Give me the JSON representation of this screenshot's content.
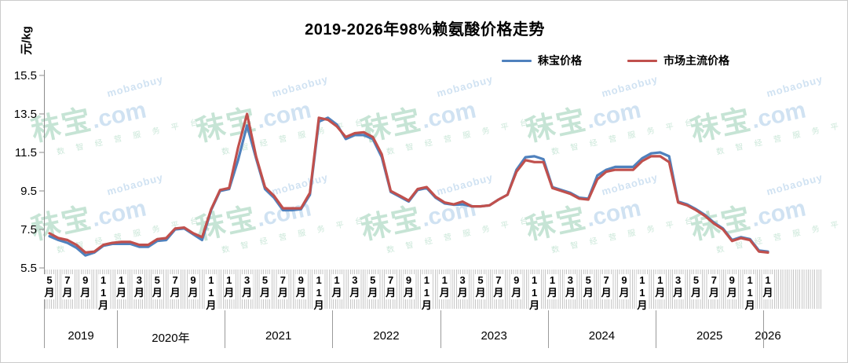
{
  "watermark": {
    "brand": "秣宝",
    "domain": ".com",
    "en": "mobaobuy",
    "slogan": "数 智 经 营 服 务 平 台"
  },
  "chart_data": {
    "type": "line",
    "title": "2019-2026年98%赖氨酸价格走势",
    "ylabel": "元/kg",
    "xlabel": "",
    "ylim": [
      5.5,
      15.5
    ],
    "grid": false,
    "legend_position": "top",
    "y_ticks": [
      "5.5",
      "7.5",
      "9.5",
      "11.5",
      "13.5",
      "15.5"
    ],
    "x_tick_every": 2,
    "x_tick_labels": [
      "5月",
      "7月",
      "9月",
      "11月",
      "1月",
      "3月",
      "5月",
      "7月",
      "9月",
      "11月",
      "1月",
      "3月",
      "5月",
      "7月",
      "9月",
      "11月",
      "1月",
      "3月",
      "5月",
      "7月",
      "9月",
      "11月",
      "1月",
      "3月",
      "5月",
      "7月",
      "9月",
      "11月",
      "1月",
      "3月",
      "5月",
      "7月",
      "9月",
      "11月",
      "1月",
      "3月",
      "5月",
      "7月",
      "9月",
      "11月",
      "1月"
    ],
    "years": [
      {
        "label": "2019",
        "from": 0,
        "to": 7
      },
      {
        "label": "2020年",
        "from": 8,
        "to": 19
      },
      {
        "label": "2021",
        "from": 20,
        "to": 31
      },
      {
        "label": "2022",
        "from": 32,
        "to": 43
      },
      {
        "label": "2023",
        "from": 44,
        "to": 55
      },
      {
        "label": "2024",
        "from": 56,
        "to": 67
      },
      {
        "label": "2025",
        "from": 68,
        "to": 79
      },
      {
        "label": "2026",
        "from": 80,
        "to": 80
      }
    ],
    "categories": [
      "2019-05",
      "2019-06",
      "2019-07",
      "2019-08",
      "2019-09",
      "2019-10",
      "2019-11",
      "2019-12",
      "2020-01",
      "2020-02",
      "2020-03",
      "2020-04",
      "2020-05",
      "2020-06",
      "2020-07",
      "2020-08",
      "2020-09",
      "2020-10",
      "2020-11",
      "2020-12",
      "2021-01",
      "2021-02",
      "2021-03",
      "2021-04",
      "2021-05",
      "2021-06",
      "2021-07",
      "2021-08",
      "2021-09",
      "2021-10",
      "2021-11",
      "2021-12",
      "2022-01",
      "2022-02",
      "2022-03",
      "2022-04",
      "2022-05",
      "2022-06",
      "2022-07",
      "2022-08",
      "2022-09",
      "2022-10",
      "2022-11",
      "2022-12",
      "2023-01",
      "2023-02",
      "2023-03",
      "2023-04",
      "2023-05",
      "2023-06",
      "2023-07",
      "2023-08",
      "2023-09",
      "2023-10",
      "2023-11",
      "2023-12",
      "2024-01",
      "2024-02",
      "2024-03",
      "2024-04",
      "2024-05",
      "2024-06",
      "2024-07",
      "2024-08",
      "2024-09",
      "2024-10",
      "2024-11",
      "2024-12",
      "2025-01",
      "2025-02",
      "2025-03",
      "2025-04",
      "2025-05",
      "2025-06",
      "2025-07",
      "2025-08",
      "2025-09",
      "2025-10",
      "2025-11",
      "2025-12",
      "2026-01"
    ],
    "series": [
      {
        "name": "秣宝价格",
        "color": "#4f81bd",
        "values": [
          7.15,
          6.95,
          6.8,
          6.55,
          6.15,
          6.3,
          6.65,
          6.75,
          6.75,
          6.75,
          6.6,
          6.6,
          6.9,
          6.95,
          7.5,
          7.55,
          7.25,
          6.95,
          8.5,
          9.5,
          9.6,
          11.1,
          12.9,
          11.2,
          9.6,
          9.15,
          8.5,
          8.5,
          8.55,
          9.3,
          13.1,
          13.3,
          12.95,
          12.2,
          12.4,
          12.4,
          12.2,
          11.25,
          9.45,
          9.2,
          8.95,
          9.55,
          9.65,
          9.15,
          8.85,
          8.78,
          8.8,
          8.7,
          8.7,
          8.75,
          9.05,
          9.3,
          10.6,
          11.25,
          11.3,
          11.15,
          9.7,
          9.55,
          9.4,
          9.15,
          9.1,
          10.3,
          10.6,
          10.75,
          10.75,
          10.75,
          11.2,
          11.45,
          11.5,
          11.3,
          8.95,
          8.8,
          8.55,
          8.25,
          7.85,
          7.55,
          6.95,
          7.1,
          7.0,
          6.4,
          6.35
        ]
      },
      {
        "name": "市场主流价格",
        "color": "#c0504d",
        "values": [
          7.3,
          7.05,
          6.95,
          6.7,
          6.3,
          6.35,
          6.7,
          6.8,
          6.85,
          6.85,
          6.7,
          6.7,
          7.0,
          7.05,
          7.55,
          7.6,
          7.3,
          7.1,
          8.55,
          9.55,
          9.65,
          11.75,
          13.5,
          11.3,
          9.7,
          9.25,
          8.6,
          8.6,
          8.6,
          9.4,
          13.3,
          13.2,
          12.85,
          12.3,
          12.5,
          12.55,
          12.3,
          11.4,
          9.5,
          9.25,
          9.0,
          9.6,
          9.7,
          9.2,
          8.9,
          8.8,
          8.95,
          8.7,
          8.7,
          8.75,
          9.05,
          9.3,
          10.5,
          11.1,
          11.0,
          11.0,
          9.65,
          9.5,
          9.35,
          9.1,
          9.05,
          10.1,
          10.5,
          10.6,
          10.6,
          10.6,
          11.05,
          11.3,
          11.3,
          11.0,
          8.9,
          8.75,
          8.5,
          8.2,
          7.8,
          7.5,
          6.9,
          7.05,
          6.95,
          6.35,
          6.3
        ]
      }
    ]
  }
}
